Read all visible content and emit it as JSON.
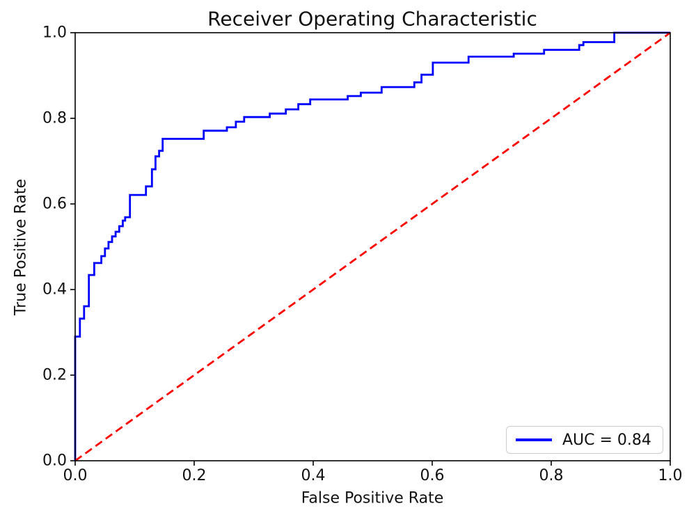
{
  "chart_data": {
    "type": "line",
    "title": "Receiver Operating Characteristic",
    "xlabel": "False Positive Rate",
    "ylabel": "True Positive Rate",
    "xlim": [
      0.0,
      1.0
    ],
    "ylim": [
      0.0,
      1.0
    ],
    "grid": false,
    "auc": 0.84,
    "legend": {
      "label": "AUC = 0.84",
      "position": "lower right"
    },
    "x_ticks": [
      {
        "value": 0.0,
        "label": "0.0"
      },
      {
        "value": 0.2,
        "label": "0.2"
      },
      {
        "value": 0.4,
        "label": "0.4"
      },
      {
        "value": 0.6,
        "label": "0.6"
      },
      {
        "value": 0.8,
        "label": "0.8"
      },
      {
        "value": 1.0,
        "label": "1.0"
      }
    ],
    "y_ticks": [
      {
        "value": 0.0,
        "label": "0.0"
      },
      {
        "value": 0.2,
        "label": "0.2"
      },
      {
        "value": 0.4,
        "label": "0.4"
      },
      {
        "value": 0.6,
        "label": "0.6"
      },
      {
        "value": 0.8,
        "label": "0.8"
      },
      {
        "value": 1.0,
        "label": "1.0"
      }
    ],
    "series": [
      {
        "name": "roc-curve",
        "legend": "AUC = 0.84",
        "color": "#0000ff",
        "line_style": "solid",
        "line_width": 2.8,
        "points": [
          [
            0.0,
            0.0
          ],
          [
            0.0,
            0.29
          ],
          [
            0.008,
            0.29
          ],
          [
            0.008,
            0.332
          ],
          [
            0.015,
            0.332
          ],
          [
            0.015,
            0.361
          ],
          [
            0.023,
            0.361
          ],
          [
            0.023,
            0.434
          ],
          [
            0.032,
            0.434
          ],
          [
            0.032,
            0.462
          ],
          [
            0.044,
            0.462
          ],
          [
            0.044,
            0.478
          ],
          [
            0.05,
            0.478
          ],
          [
            0.05,
            0.496
          ],
          [
            0.056,
            0.496
          ],
          [
            0.056,
            0.511
          ],
          [
            0.062,
            0.511
          ],
          [
            0.062,
            0.524
          ],
          [
            0.068,
            0.524
          ],
          [
            0.068,
            0.535
          ],
          [
            0.074,
            0.535
          ],
          [
            0.074,
            0.548
          ],
          [
            0.08,
            0.548
          ],
          [
            0.08,
            0.561
          ],
          [
            0.084,
            0.561
          ],
          [
            0.084,
            0.569
          ],
          [
            0.092,
            0.569
          ],
          [
            0.092,
            0.621
          ],
          [
            0.119,
            0.621
          ],
          [
            0.119,
            0.641
          ],
          [
            0.129,
            0.641
          ],
          [
            0.129,
            0.681
          ],
          [
            0.135,
            0.681
          ],
          [
            0.135,
            0.711
          ],
          [
            0.141,
            0.711
          ],
          [
            0.141,
            0.724
          ],
          [
            0.147,
            0.724
          ],
          [
            0.147,
            0.752
          ],
          [
            0.216,
            0.752
          ],
          [
            0.216,
            0.771
          ],
          [
            0.255,
            0.771
          ],
          [
            0.255,
            0.779
          ],
          [
            0.27,
            0.779
          ],
          [
            0.27,
            0.792
          ],
          [
            0.284,
            0.792
          ],
          [
            0.284,
            0.803
          ],
          [
            0.327,
            0.803
          ],
          [
            0.327,
            0.811
          ],
          [
            0.354,
            0.811
          ],
          [
            0.354,
            0.821
          ],
          [
            0.375,
            0.821
          ],
          [
            0.375,
            0.833
          ],
          [
            0.395,
            0.833
          ],
          [
            0.395,
            0.844
          ],
          [
            0.458,
            0.844
          ],
          [
            0.458,
            0.852
          ],
          [
            0.48,
            0.852
          ],
          [
            0.48,
            0.86
          ],
          [
            0.515,
            0.86
          ],
          [
            0.515,
            0.873
          ],
          [
            0.57,
            0.873
          ],
          [
            0.57,
            0.884
          ],
          [
            0.582,
            0.884
          ],
          [
            0.582,
            0.902
          ],
          [
            0.601,
            0.902
          ],
          [
            0.601,
            0.93
          ],
          [
            0.661,
            0.93
          ],
          [
            0.661,
            0.944
          ],
          [
            0.737,
            0.944
          ],
          [
            0.737,
            0.951
          ],
          [
            0.788,
            0.951
          ],
          [
            0.788,
            0.96
          ],
          [
            0.847,
            0.96
          ],
          [
            0.847,
            0.971
          ],
          [
            0.854,
            0.971
          ],
          [
            0.854,
            0.978
          ],
          [
            0.906,
            0.978
          ],
          [
            0.906,
            1.0
          ],
          [
            1.0,
            1.0
          ]
        ]
      },
      {
        "name": "chance-line",
        "legend": null,
        "color": "#ff0000",
        "line_style": "dashed",
        "line_width": 2.8,
        "points": [
          [
            0.0,
            0.0
          ],
          [
            1.0,
            1.0
          ]
        ]
      }
    ]
  },
  "colors": {
    "curve": "#0000ff",
    "diagonal": "#ff0000",
    "axes": "#000000",
    "legend_border": "#cccccc",
    "background": "#ffffff"
  }
}
